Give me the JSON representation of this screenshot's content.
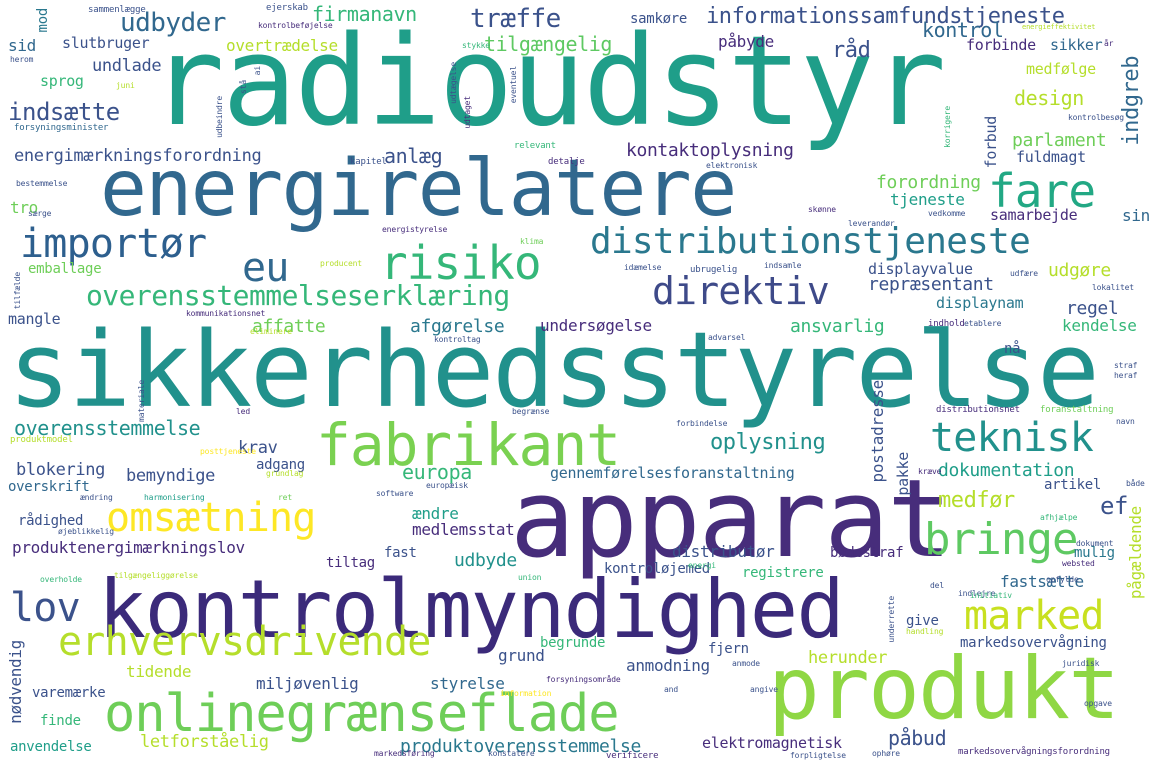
{
  "palette": {
    "dark_purple": "#440154",
    "indigo": "#3b528b",
    "teal_blue": "#31688e",
    "teal": "#21918c",
    "sea_green": "#1f9e89",
    "green": "#35b779",
    "light_green": "#6ece58",
    "lime": "#b5de2b",
    "yellow": "#fde725",
    "background": "#ffffff"
  },
  "words": {
    "radioudstyr": "radioudstyr",
    "sikkerhedsstyrelse": "sikkerhedsstyrelse",
    "apparat": "apparat",
    "kontrolmyndighed": "kontrolmyndighed",
    "energirelatere": "energirelatere",
    "produkt": "produkt",
    "fabrikant": "fabrikant",
    "onlinegraenseflade": "onlinegrænseflade",
    "erhvervsdrivende": "erhvervsdrivende",
    "distributionstjeneste": "distributionstjeneste",
    "risiko": "risiko",
    "fare": "fare",
    "importoer": "importør",
    "eu": "eu",
    "direktiv": "direktiv",
    "overensstemmelseserklaering": "overensstemmelseserklæring",
    "teknisk": "teknisk",
    "omsaetning": "omsætning",
    "bringe": "bringe",
    "marked": "marked",
    "lov": "lov",
    "informationssamfundstjeneste": "informationssamfundstjeneste",
    "udbyder": "udbyder",
    "traeffe": "træffe",
    "firmanavn": "firmanavn",
    "tilgaengelig": "tilgængelig",
    "kontrol": "kontrol",
    "raad": "råd",
    "paabyde": "påbyde",
    "overtraedelse": "overtrædelse",
    "slutbruger": "slutbruger",
    "sid": "sid",
    "mod": "mod",
    "undlade": "undlade",
    "sprog": "sprog",
    "indsaette": "indsætte",
    "ingreb": "indgreb",
    "design": "design",
    "medfoelge": "medfølge",
    "forbinde": "forbinde",
    "sikker": "sikker",
    "energimaerkningsforordning": "energimærkningsforordning",
    "anlaeg": "anlæg",
    "kontaktoplysning": "kontaktoplysning",
    "parlament": "parlament",
    "forbud": "forbud",
    "fuldmagt": "fuldmagt",
    "forordning": "forordning",
    "tjeneste": "tjeneste",
    "samarbejde": "samarbejde",
    "sin": "sin",
    "tro": "tro",
    "emballage": "emballage",
    "udgoere": "udgøre",
    "repraesentant": "repræsentant",
    "displayvalue": "displayvalue",
    "displaynam": "displaynam",
    "regel": "regel",
    "mangle": "mangle",
    "affatte": "affatte",
    "afgoerelse": "afgørelse",
    "undersoegelse": "undersøgelse",
    "ansvarlig": "ansvarlig",
    "kendelse": "kendelse",
    "naa": "nå",
    "overensstemmelse": "overensstemmelse",
    "krav": "krav",
    "oplysning": "oplysning",
    "europa": "europa",
    "postadresse": "postadresse",
    "dokumentation": "dokumentation",
    "blokering": "blokering",
    "bemyndige": "bemyndige",
    "adgang": "adgang",
    "gennemfoerelsesforanstaltning": "gennemførelsesforanstaltning",
    "overskrift": "overskrift",
    "pakke": "pakke",
    "artikel": "artikel",
    "medfoer": "medfør",
    "ef": "ef",
    "raadighed": "rådighed",
    "aendre": "ændre",
    "medlemsstat": "medlemsstat",
    "pagaeldende": "pågældende",
    "produktenergimaerkningslov": "produktenergimærkningslov",
    "fast": "fast",
    "udbyde": "udbyde",
    "distributoer": "distributør",
    "boedestraf": "bødestraf",
    "mulig": "mulig",
    "tiltag": "tiltag",
    "kontroloejemed": "kontroløjemed",
    "registrere": "registrere",
    "fastsaette": "fastsætte",
    "give": "give",
    "noedvendig": "nødvendig",
    "begrunde": "begrunde",
    "fjern": "fjern",
    "markedsovervaagning": "markedsovervågning",
    "grund": "grund",
    "anmodning": "anmodning",
    "herunder": "herunder",
    "tidende": "tidende",
    "miljoevenlig": "miljøvenlig",
    "styrelse": "styrelse",
    "varemaerke": "varemærke",
    "finde": "finde",
    "anvendelse": "anvendelse",
    "letforstaaelig": "letforståelig",
    "produktoverensstemmelse": "produktoverensstemmelse",
    "elektromagnetisk": "elektromagnetisk",
    "paabud": "påbud",
    "sammenlaegge": "sammenlægge",
    "ejerskab": "ejerskab",
    "kontrolbefojelse": "kontrolbeføjelse",
    "samkoere": "samkøre",
    "energieffektivitet": "energieffektivitet",
    "stykke": "stykke",
    "aar": "år",
    "herom": "herom",
    "staa": "stå",
    "ai": "ai",
    "udtaegelse": "udtægelse",
    "juni": "juni",
    "forsyningsminister": "forsyningsminister",
    "udbeindre": "udbeindre",
    "udtaget": "udtaget",
    "eventuel": "eventuel",
    "kontrolbesoeg": "kontrolbesøg",
    "korrigere": "korrigere",
    "relevant": "relevant",
    "kapitel": "kapitel",
    "detalje": "detalje",
    "elektronisk": "elektronisk",
    "bestemmelse": "bestemmelse",
    "saerge": "særge",
    "skoenne": "skønne",
    "leverandoer": "leverandør",
    "vedkomme": "vedkomme",
    "energistyrelse": "energistyrelse",
    "klima": "klima",
    "producent": "producent",
    "idaemelse": "idæmelse",
    "ubrugelig": "ubrugelig",
    "indsamle": "indsamle",
    "udfaere": "udfære",
    "lokalitet": "lokalitet",
    "tilfaelde": "tilfælde",
    "kommunikationsnet": "kommunikationsnet",
    "eliminere": "eliminere",
    "kontroltag": "kontroltag",
    "indhold": "indhold",
    "etablere": "etablere",
    "advarsel": "advarsel",
    "straf": "straf",
    "heraf": "heraf",
    "materiale": "materiale",
    "led": "led",
    "begraense": "begrænse",
    "distributionsnet": "distributionsnet",
    "foranstaltning": "foranstaltning",
    "navn": "navn",
    "produktmodel": "produktmodel",
    "forbindelse": "forbindelse",
    "posttjeneste": "posttjeneste",
    "grundlag": "grundlag",
    "kraeve": "kræve",
    "baade": "både",
    "aendring": "ændring",
    "harmonisering": "harmonisering",
    "ret": "ret",
    "software": "software",
    "europaeisk": "europæisk",
    "afhjaelpe": "afhjælpe",
    "oejeblikkelig": "øjeblikkelig",
    "dokument": "dokument",
    "websted": "websted",
    "overholde": "overholde",
    "tilgaengeliggoerelse": "tilgængeliggørelse",
    "union": "union",
    "energi": "energi",
    "del": "del",
    "indlejre": "indlejre",
    "initiativ": "initiativ",
    "opfylde": "opfylde",
    "underrette": "underrette",
    "handling": "handling",
    "anmode": "anmode",
    "juridisk": "juridisk",
    "forsyningsomraade": "forsyningsområde",
    "information": "information",
    "and": "and",
    "angive": "angive",
    "opgave": "opgave",
    "markedsfoering": "markedsføring",
    "konstatere": "konstatere",
    "verificere": "verificere",
    "forpligtelse": "forpligtelse",
    "ophoere": "ophøre",
    "markedsovervaagningsforordning": "markedsovervågningsforordning"
  }
}
